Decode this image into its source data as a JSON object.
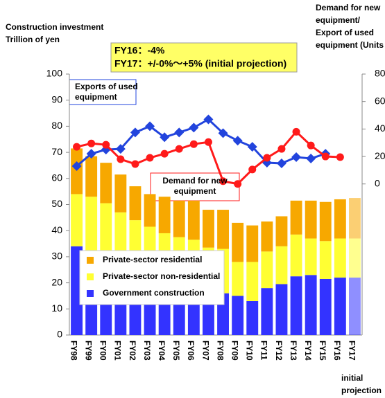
{
  "chart_data": {
    "type": "bar",
    "title_left": [
      "Construction investment",
      "Trillion of yen"
    ],
    "title_right": [
      "Demand for new",
      "equipment/",
      "Export of used",
      "equipment (Units"
    ],
    "annotation": [
      "FY16：-4%",
      "FY17：+/-0%～+5% (initial projection)"
    ],
    "line_labels": [
      [
        "Exports of used",
        "equipment"
      ],
      [
        "Demand for new",
        "equipment"
      ]
    ],
    "x_note": [
      "initial",
      "projection"
    ],
    "categories": [
      "FY98",
      "FY99",
      "FY00",
      "FY01",
      "FY02",
      "FY03",
      "FY04",
      "FY05",
      "FY06",
      "FY07",
      "FY08",
      "FY09",
      "FY10",
      "FY11",
      "FY12",
      "FY13",
      "FY14",
      "FY15",
      "FY16",
      "FY17"
    ],
    "series": [
      {
        "name": "Government construction",
        "color": "#3333ff",
        "values": [
          34,
          32,
          30,
          28,
          26,
          24,
          21,
          19,
          18,
          16,
          16,
          15,
          13,
          18,
          19.5,
          22.5,
          23,
          21.5,
          22,
          22
        ]
      },
      {
        "name": "Private-sector non-residential",
        "color": "#ffff33",
        "values": [
          20,
          21,
          20.5,
          19,
          18,
          17.5,
          18,
          18.5,
          18.5,
          17.5,
          17,
          13,
          15,
          14,
          14.5,
          16,
          14,
          14.5,
          15,
          15
        ]
      },
      {
        "name": "Private-sector residential",
        "color": "#f7a800",
        "values": [
          17.5,
          15.5,
          15.5,
          14.5,
          13,
          12.5,
          14,
          14,
          15,
          14.5,
          15,
          15,
          14,
          11.5,
          11.5,
          13,
          14.5,
          15,
          15,
          15.5
        ]
      },
      {
        "name": "Exports of used equipment",
        "type": "line",
        "axis": "y2",
        "color": "#2244dd",
        "values": [
          13,
          22,
          25,
          25.5,
          37.5,
          42,
          34,
          37.5,
          41,
          47,
          37,
          31.5,
          27,
          15.5,
          15,
          19.5,
          18.5,
          22,
          null,
          null
        ]
      },
      {
        "name": "Demand for new equipment",
        "type": "line",
        "axis": "y2",
        "color": "#ff1a1a",
        "values": [
          27,
          29.5,
          28.5,
          18,
          14.5,
          19,
          22,
          25.5,
          29,
          30.5,
          2,
          0,
          10.5,
          19,
          25.5,
          38,
          28,
          20,
          19.5,
          null
        ]
      }
    ],
    "ylim": [
      0,
      100
    ],
    "yticks": [
      0,
      10,
      20,
      30,
      40,
      50,
      60,
      70,
      80,
      90,
      100
    ],
    "y2lim": [
      -110,
      80
    ],
    "y2ticks": [
      0,
      20,
      40,
      60,
      80
    ]
  }
}
